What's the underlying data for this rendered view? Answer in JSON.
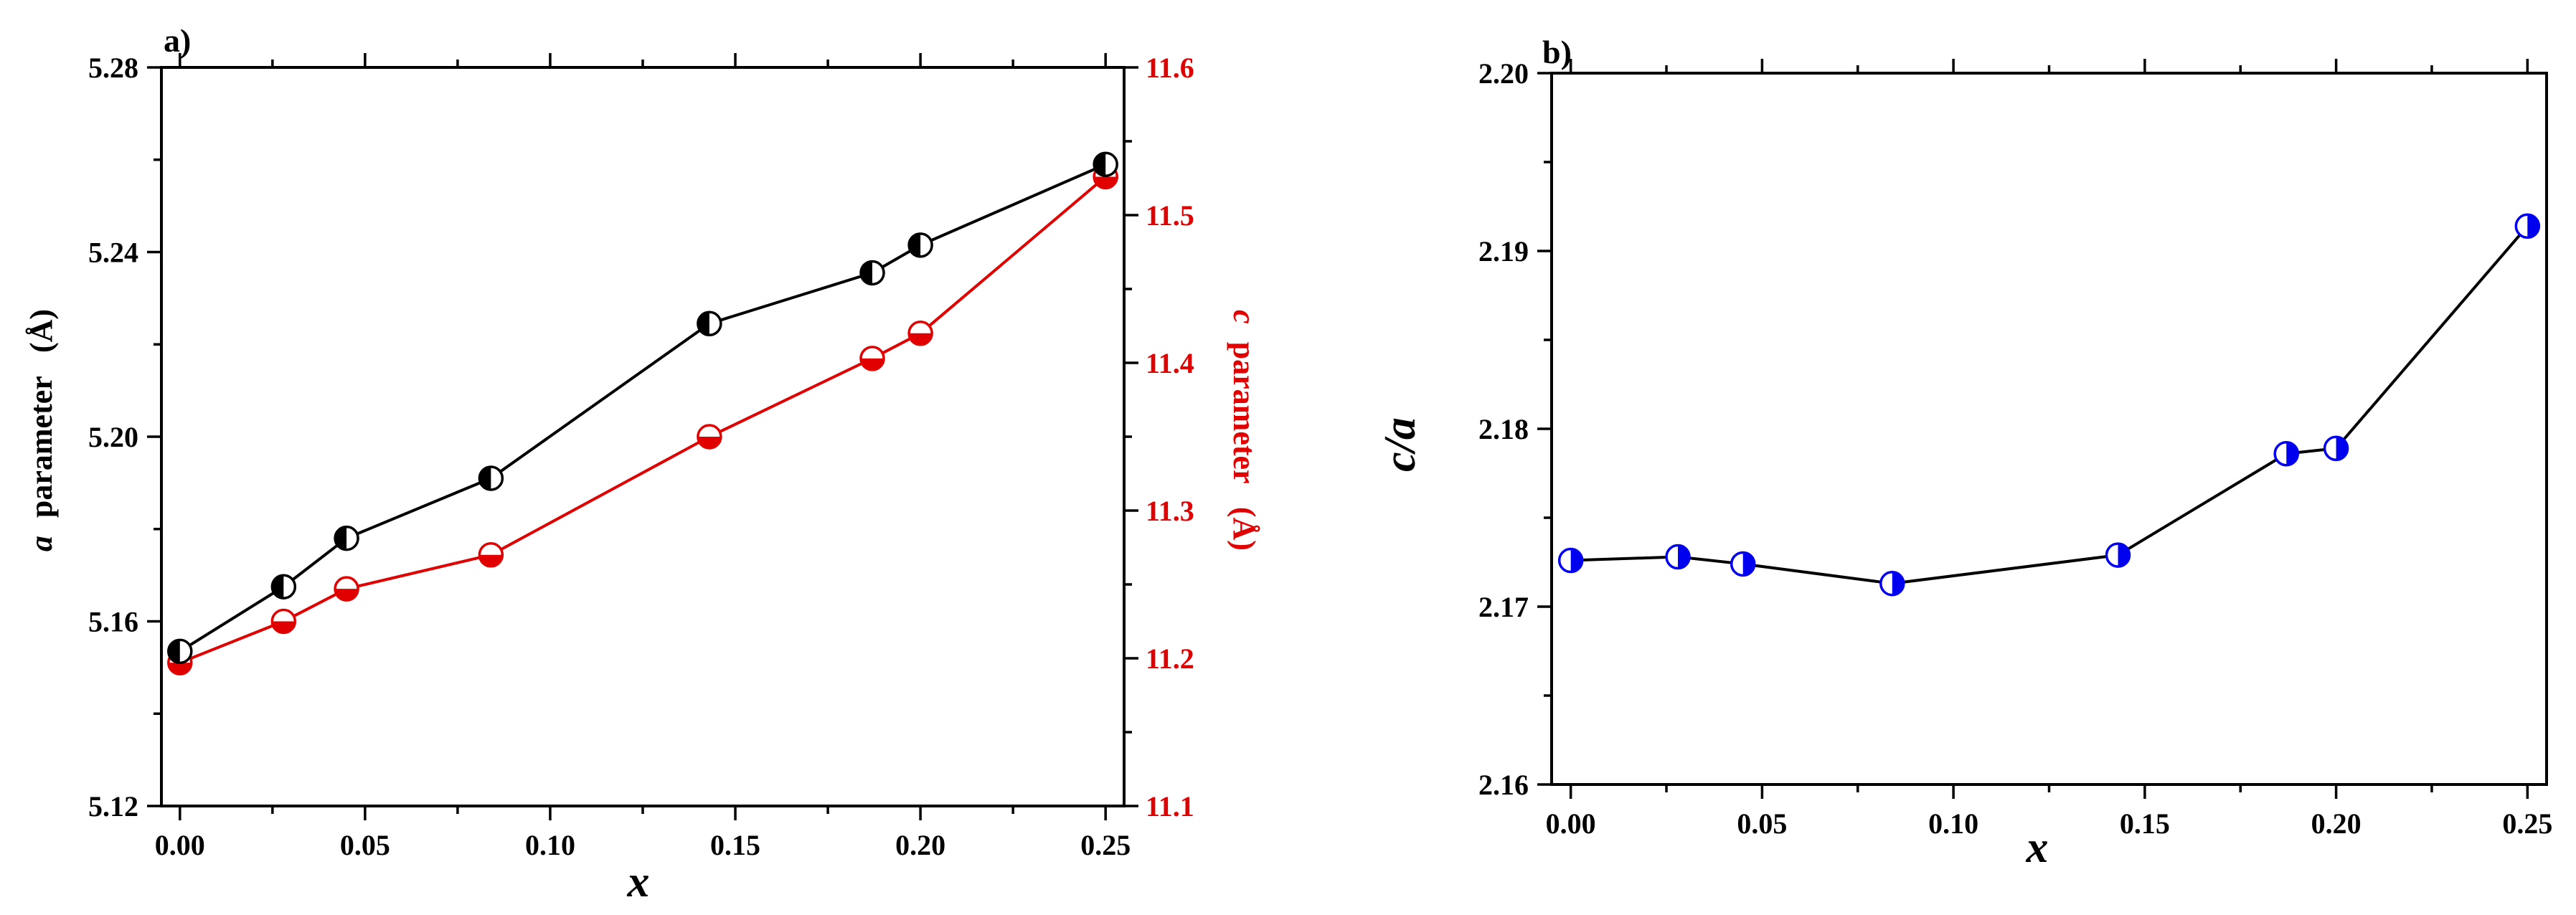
{
  "colors": {
    "a_series": "#000000",
    "c_series": "#e00000",
    "ca_series": "#0000ee",
    "background": "#ffffff"
  },
  "chart_data": [
    {
      "panel_label": "a)",
      "type": "line",
      "xlabel": "x",
      "x_ticks": [
        "0.00",
        "0.05",
        "0.10",
        "0.15",
        "0.20",
        "0.25"
      ],
      "xlim": [
        -0.005,
        0.255
      ],
      "ylabel_left": {
        "symbol": "a",
        "text": "parameter",
        "unit": "(Å)"
      },
      "ylabel_right": {
        "symbol": "c",
        "text": "parameter",
        "unit": "(Å)"
      },
      "ylim_left": [
        5.12,
        5.28
      ],
      "ylim_right": [
        11.1,
        11.6
      ],
      "y_ticks_left": [
        "5.12",
        "5.16",
        "5.20",
        "5.24",
        "5.28"
      ],
      "y_ticks_right": [
        "11.1",
        "11.2",
        "11.3",
        "11.4",
        "11.5",
        "11.6"
      ],
      "series": [
        {
          "name": "a parameter",
          "axis": "left",
          "marker": "left-half-filled circle",
          "x": [
            0.0,
            0.028,
            0.045,
            0.084,
            0.143,
            0.187,
            0.2,
            0.25
          ],
          "y": [
            5.1535,
            5.1675,
            5.178,
            5.191,
            5.2245,
            5.2355,
            5.2415,
            5.259
          ]
        },
        {
          "name": "c parameter",
          "axis": "right",
          "marker": "bottom-half-filled circle",
          "x": [
            0.0,
            0.028,
            0.045,
            0.084,
            0.143,
            0.187,
            0.2,
            0.25
          ],
          "y": [
            11.197,
            11.225,
            11.247,
            11.27,
            11.35,
            11.403,
            11.42,
            11.526
          ]
        }
      ]
    },
    {
      "panel_label": "b)",
      "type": "line",
      "xlabel": "x",
      "ylabel": "c/a",
      "x_ticks": [
        "0.00",
        "0.05",
        "0.10",
        "0.15",
        "0.20",
        "0.25"
      ],
      "y_ticks": [
        "2.16",
        "2.17",
        "2.18",
        "2.19",
        "2.20"
      ],
      "xlim": [
        -0.005,
        0.255
      ],
      "ylim": [
        2.16,
        2.2
      ],
      "series": [
        {
          "name": "c/a",
          "marker": "right-half-filled circle",
          "x": [
            0.0,
            0.028,
            0.045,
            0.084,
            0.143,
            0.187,
            0.2,
            0.25
          ],
          "y": [
            2.1726,
            2.1728,
            2.1724,
            2.1713,
            2.1729,
            2.1786,
            2.1789,
            2.1914
          ]
        }
      ]
    }
  ]
}
